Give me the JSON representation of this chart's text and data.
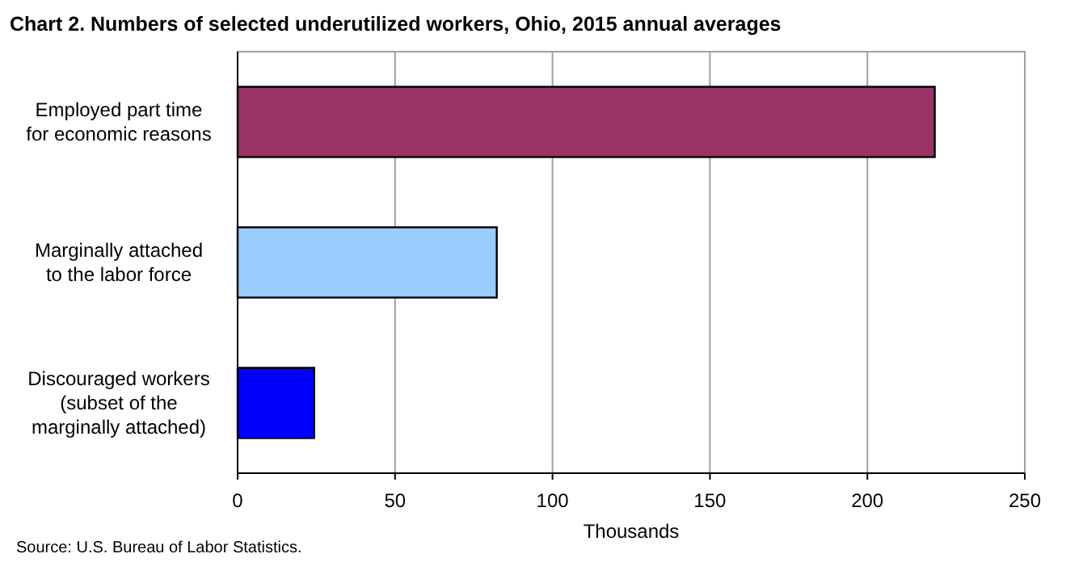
{
  "chart_data": {
    "type": "bar",
    "orientation": "horizontal",
    "title": "Chart 2. Numbers of selected underutilized workers, Ohio, 2015  annual averages",
    "categories": [
      "Employed part time\nfor economic reasons",
      "Marginally attached\nto the labor force",
      "Discouraged workers\n(subset of the\nmarginally attached)"
    ],
    "values": [
      221.4,
      82.3,
      24.3
    ],
    "colors": [
      "#993366",
      "#99ccff",
      "#0000ff"
    ],
    "xlabel": "Thousands",
    "xlim": [
      0,
      250
    ],
    "xticks": [
      0,
      50,
      100,
      150,
      200,
      250
    ],
    "grid": "x",
    "annotations": [
      "Source: U.S. Bureau of Labor Statistics."
    ]
  }
}
